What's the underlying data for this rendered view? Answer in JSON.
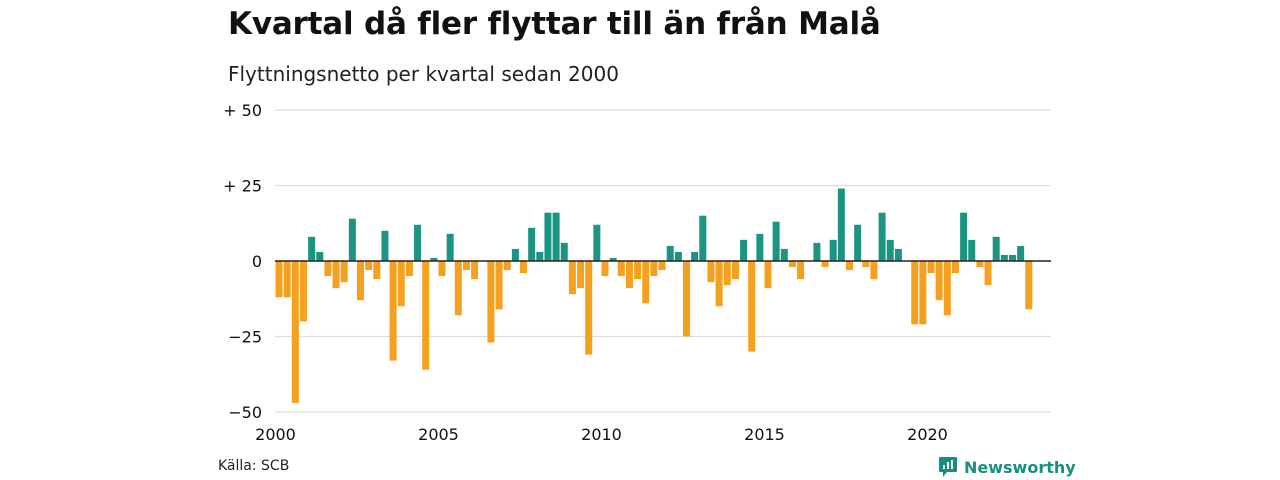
{
  "title": "Kvartal då fler flyttar till än från Malå",
  "subtitle": "Flyttningsnetto per kvartal sedan 2000",
  "source": "Källa: SCB",
  "brand": {
    "name": "Newsworthy",
    "icon": "newsworthy-logo-icon",
    "color": "#17907f"
  },
  "colors": {
    "positive": "#1b9482",
    "negative": "#f5a01f",
    "grid": "#dddddd",
    "zero": "#222222"
  },
  "chart_data": {
    "type": "bar",
    "x_start": 2000,
    "periods_per_year": 4,
    "ylim": [
      -50,
      50
    ],
    "yticks": [
      {
        "value": 50,
        "label": "+ 50"
      },
      {
        "value": 25,
        "label": "+ 25"
      },
      {
        "value": 0,
        "label": "0"
      },
      {
        "value": -25,
        "label": "−25"
      },
      {
        "value": -50,
        "label": "−50"
      }
    ],
    "xticks": [
      {
        "year": 2000,
        "label": "2000"
      },
      {
        "year": 2005,
        "label": "2005"
      },
      {
        "year": 2010,
        "label": "2010"
      },
      {
        "year": 2015,
        "label": "2015"
      },
      {
        "year": 2020,
        "label": "2020"
      }
    ],
    "values": [
      -12,
      -12,
      -47,
      -20,
      8,
      3,
      -5,
      -9,
      -7,
      14,
      -13,
      -3,
      -6,
      10,
      -33,
      -15,
      -5,
      12,
      -36,
      1,
      -5,
      9,
      -18,
      -3,
      -6,
      0,
      -27,
      -16,
      -3,
      4,
      -4,
      11,
      3,
      16,
      16,
      6,
      -11,
      -9,
      -31,
      12,
      -5,
      1,
      -5,
      -9,
      -6,
      -14,
      -5,
      -3,
      5,
      3,
      -25,
      3,
      15,
      -7,
      -15,
      -8,
      -6,
      7,
      -30,
      9,
      -9,
      13,
      4,
      -2,
      -6,
      0,
      6,
      -2,
      7,
      24,
      -3,
      12,
      -2,
      -6,
      16,
      7,
      4,
      0,
      -21,
      -21,
      -4,
      -13,
      -18,
      -4,
      16,
      7,
      -2,
      -8,
      8,
      2,
      2,
      5,
      -16
    ]
  }
}
